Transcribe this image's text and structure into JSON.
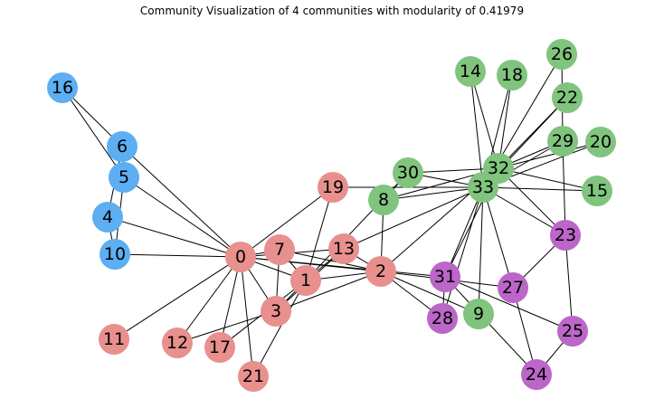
{
  "title": "Community Visualization of 4 communities with modularity of 0.41979",
  "colors": {
    "community_0": "#e8908e",
    "community_1": "#5daef2",
    "community_2": "#80c47e",
    "community_3": "#bb66c8",
    "edge": "#000000"
  },
  "nodes": [
    {
      "id": "0",
      "community": 0
    },
    {
      "id": "1",
      "community": 0
    },
    {
      "id": "2",
      "community": 0
    },
    {
      "id": "3",
      "community": 0
    },
    {
      "id": "4",
      "community": 1
    },
    {
      "id": "5",
      "community": 1
    },
    {
      "id": "6",
      "community": 1
    },
    {
      "id": "7",
      "community": 0
    },
    {
      "id": "8",
      "community": 2
    },
    {
      "id": "9",
      "community": 2
    },
    {
      "id": "10",
      "community": 1
    },
    {
      "id": "11",
      "community": 0
    },
    {
      "id": "12",
      "community": 0
    },
    {
      "id": "13",
      "community": 0
    },
    {
      "id": "14",
      "community": 2
    },
    {
      "id": "15",
      "community": 2
    },
    {
      "id": "16",
      "community": 1
    },
    {
      "id": "17",
      "community": 0
    },
    {
      "id": "18",
      "community": 2
    },
    {
      "id": "19",
      "community": 0
    },
    {
      "id": "20",
      "community": 2
    },
    {
      "id": "21",
      "community": 0
    },
    {
      "id": "22",
      "community": 2
    },
    {
      "id": "23",
      "community": 3
    },
    {
      "id": "24",
      "community": 3
    },
    {
      "id": "25",
      "community": 3
    },
    {
      "id": "26",
      "community": 2
    },
    {
      "id": "27",
      "community": 3
    },
    {
      "id": "28",
      "community": 3
    },
    {
      "id": "29",
      "community": 2
    },
    {
      "id": "30",
      "community": 2
    },
    {
      "id": "31",
      "community": 3
    },
    {
      "id": "32",
      "community": 2
    },
    {
      "id": "33",
      "community": 2
    }
  ],
  "edges": [
    [
      "0",
      "1"
    ],
    [
      "0",
      "2"
    ],
    [
      "0",
      "3"
    ],
    [
      "0",
      "4"
    ],
    [
      "0",
      "5"
    ],
    [
      "0",
      "6"
    ],
    [
      "0",
      "7"
    ],
    [
      "0",
      "10"
    ],
    [
      "0",
      "11"
    ],
    [
      "0",
      "12"
    ],
    [
      "0",
      "13"
    ],
    [
      "0",
      "17"
    ],
    [
      "0",
      "19"
    ],
    [
      "0",
      "21"
    ],
    [
      "0",
      "31"
    ],
    [
      "1",
      "2"
    ],
    [
      "1",
      "3"
    ],
    [
      "1",
      "7"
    ],
    [
      "1",
      "13"
    ],
    [
      "1",
      "17"
    ],
    [
      "1",
      "19"
    ],
    [
      "1",
      "21"
    ],
    [
      "1",
      "30"
    ],
    [
      "2",
      "3"
    ],
    [
      "2",
      "7"
    ],
    [
      "2",
      "8"
    ],
    [
      "2",
      "9"
    ],
    [
      "2",
      "13"
    ],
    [
      "2",
      "27"
    ],
    [
      "2",
      "28"
    ],
    [
      "2",
      "32"
    ],
    [
      "3",
      "7"
    ],
    [
      "3",
      "12"
    ],
    [
      "3",
      "13"
    ],
    [
      "4",
      "6"
    ],
    [
      "4",
      "10"
    ],
    [
      "5",
      "6"
    ],
    [
      "5",
      "10"
    ],
    [
      "5",
      "16"
    ],
    [
      "6",
      "16"
    ],
    [
      "8",
      "30"
    ],
    [
      "8",
      "32"
    ],
    [
      "8",
      "33"
    ],
    [
      "9",
      "33"
    ],
    [
      "13",
      "33"
    ],
    [
      "14",
      "32"
    ],
    [
      "14",
      "33"
    ],
    [
      "15",
      "32"
    ],
    [
      "15",
      "33"
    ],
    [
      "18",
      "32"
    ],
    [
      "18",
      "33"
    ],
    [
      "19",
      "33"
    ],
    [
      "20",
      "32"
    ],
    [
      "20",
      "33"
    ],
    [
      "22",
      "32"
    ],
    [
      "22",
      "33"
    ],
    [
      "23",
      "25"
    ],
    [
      "23",
      "27"
    ],
    [
      "23",
      "29"
    ],
    [
      "23",
      "32"
    ],
    [
      "23",
      "33"
    ],
    [
      "24",
      "25"
    ],
    [
      "24",
      "27"
    ],
    [
      "24",
      "31"
    ],
    [
      "25",
      "31"
    ],
    [
      "26",
      "29"
    ],
    [
      "26",
      "33"
    ],
    [
      "27",
      "33"
    ],
    [
      "28",
      "31"
    ],
    [
      "28",
      "33"
    ],
    [
      "29",
      "32"
    ],
    [
      "29",
      "33"
    ],
    [
      "30",
      "32"
    ],
    [
      "30",
      "33"
    ],
    [
      "31",
      "32"
    ],
    [
      "31",
      "33"
    ],
    [
      "32",
      "33"
    ]
  ]
}
